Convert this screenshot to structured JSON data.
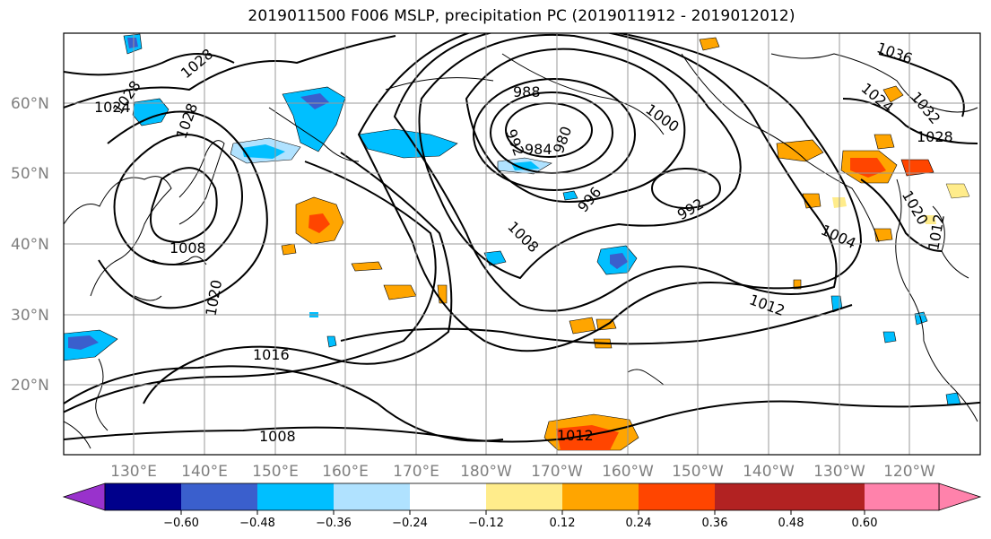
{
  "title": "2019011500 F006 MSLP, precipitation PC (2019011912 - 2019012012)",
  "lat_labels": [
    "60°N",
    "50°N",
    "40°N",
    "30°N",
    "20°N"
  ],
  "lon_labels": [
    "130°E",
    "140°E",
    "150°E",
    "160°E",
    "170°E",
    "180°W",
    "170°W",
    "160°W",
    "150°W",
    "140°W",
    "130°W",
    "120°W"
  ],
  "contour_labels": [
    {
      "text": "988"
    },
    {
      "text": "1000"
    },
    {
      "text": "992"
    },
    {
      "text": "984"
    },
    {
      "text": "980"
    },
    {
      "text": "996"
    },
    {
      "text": "992"
    },
    {
      "text": "1008"
    },
    {
      "text": "1004"
    },
    {
      "text": "1012"
    },
    {
      "text": "1008"
    },
    {
      "text": "1016"
    },
    {
      "text": "1008"
    },
    {
      "text": "1012"
    },
    {
      "text": "1020"
    },
    {
      "text": "1024"
    },
    {
      "text": "1028"
    },
    {
      "text": "1028"
    },
    {
      "text": "1028"
    },
    {
      "text": "1036"
    },
    {
      "text": "1032"
    },
    {
      "text": "1024"
    },
    {
      "text": "1028"
    },
    {
      "text": "1020"
    },
    {
      "text": "1012"
    }
  ],
  "colorbar": {
    "ticks": [
      "−0.60",
      "−0.48",
      "−0.36",
      "−0.24",
      "−0.12",
      "0.12",
      "0.24",
      "0.36",
      "0.48",
      "0.60"
    ],
    "colors": [
      "#9932cc",
      "#00008b",
      "#3a5fcd",
      "#00bfff",
      "#b0e2ff",
      "#ffffff",
      "#ffec8b",
      "#ffa500",
      "#ff4500",
      "#b22222",
      "#ff82ab"
    ]
  }
}
